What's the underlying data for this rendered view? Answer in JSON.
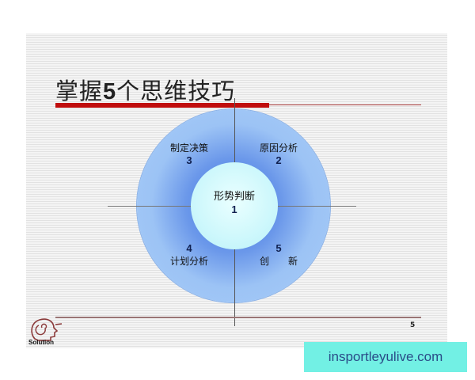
{
  "slide": {
    "title_prefix": "掌握",
    "title_number": "5",
    "title_suffix": "个思维技巧",
    "page_number": "5",
    "logo_text": "Solution",
    "colors": {
      "accent_red": "#c00d0d",
      "circle_blue": "#6b98ea",
      "inner_cyan": "#c8f6fb"
    }
  },
  "diagram": {
    "center": {
      "label": "形势判断",
      "number": "1"
    },
    "top_right": {
      "label": "原因分析",
      "number": "2"
    },
    "top_left": {
      "label": "制定决策",
      "number": "3"
    },
    "bottom_left": {
      "label": "计划分析",
      "number": "4"
    },
    "bottom_right": {
      "label": "创　　新",
      "number": "5"
    }
  },
  "watermark": {
    "text": "insportleyulive.com"
  }
}
